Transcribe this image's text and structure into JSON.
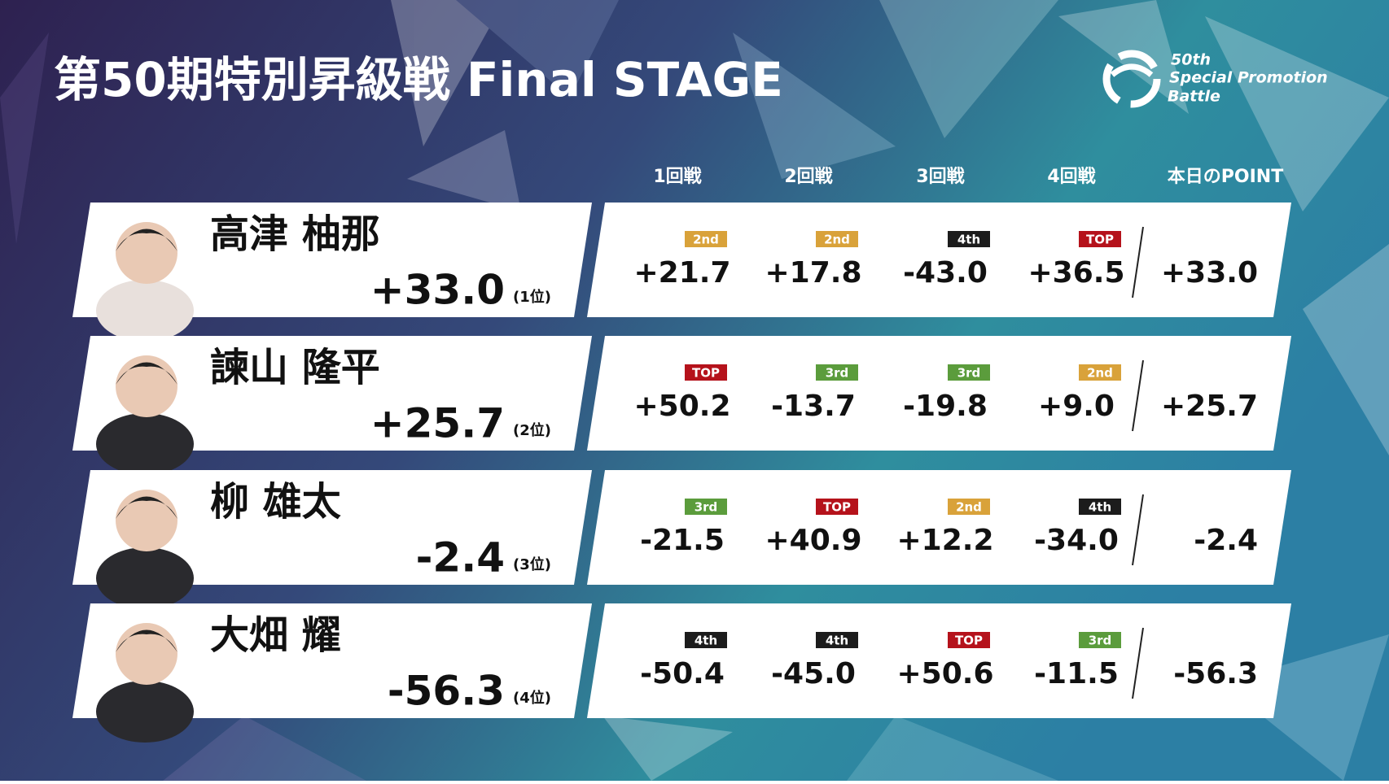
{
  "header": {
    "title": "第50期特別昇級戦 Final STAGE",
    "logo": [
      "50th",
      "Special Promotion",
      "Battle"
    ]
  },
  "table": {
    "columns": [
      "1回戦",
      "2回戦",
      "3回戦",
      "4回戦",
      "本日のPOINT"
    ],
    "rows": [
      {
        "name": "高津 柚那",
        "total": "+33.0",
        "rank": "(1位)",
        "rounds": [
          {
            "place": "2nd",
            "color": "#d9a23a",
            "score": "+21.7"
          },
          {
            "place": "2nd",
            "color": "#d9a23a",
            "score": "+17.8"
          },
          {
            "place": "4th",
            "color": "#1c1c1c",
            "score": "-43.0"
          },
          {
            "place": "TOP",
            "color": "#b5121b",
            "score": "+36.5"
          }
        ],
        "point": "+33.0"
      },
      {
        "name": "諫山 隆平",
        "total": "+25.7",
        "rank": "(2位)",
        "rounds": [
          {
            "place": "TOP",
            "color": "#b5121b",
            "score": "+50.2"
          },
          {
            "place": "3rd",
            "color": "#5b9c3c",
            "score": "-13.7"
          },
          {
            "place": "3rd",
            "color": "#5b9c3c",
            "score": "-19.8"
          },
          {
            "place": "2nd",
            "color": "#d9a23a",
            "score": "+9.0"
          }
        ],
        "point": "+25.7"
      },
      {
        "name": "柳 雄太",
        "total": "-2.4",
        "rank": "(3位)",
        "rounds": [
          {
            "place": "3rd",
            "color": "#5b9c3c",
            "score": "-21.5"
          },
          {
            "place": "TOP",
            "color": "#b5121b",
            "score": "+40.9"
          },
          {
            "place": "2nd",
            "color": "#d9a23a",
            "score": "+12.2"
          },
          {
            "place": "4th",
            "color": "#1c1c1c",
            "score": "-34.0"
          }
        ],
        "point": "-2.4"
      },
      {
        "name": "大畑 耀",
        "total": "-56.3",
        "rank": "(4位)",
        "rounds": [
          {
            "place": "4th",
            "color": "#1c1c1c",
            "score": "-50.4"
          },
          {
            "place": "4th",
            "color": "#1c1c1c",
            "score": "-45.0"
          },
          {
            "place": "TOP",
            "color": "#b5121b",
            "score": "+50.6"
          },
          {
            "place": "3rd",
            "color": "#5b9c3c",
            "score": "-11.5"
          }
        ],
        "point": "-56.3"
      }
    ]
  }
}
